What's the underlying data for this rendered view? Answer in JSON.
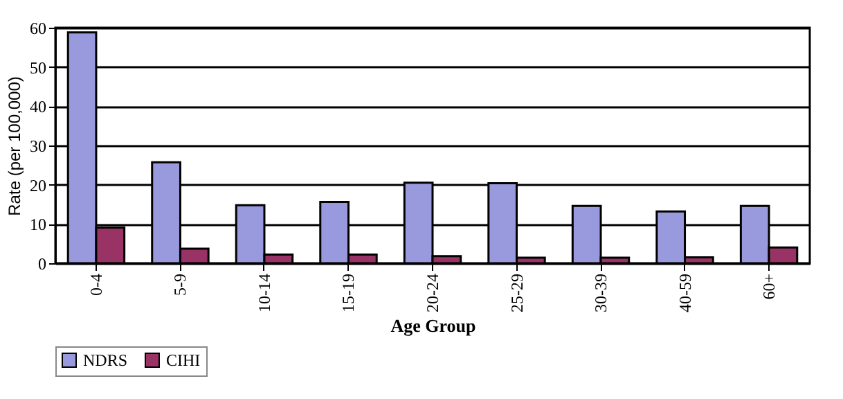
{
  "chart_data": {
    "type": "bar",
    "xlabel": "Age Group",
    "ylabel": "Rate (per 100,000)",
    "categories": [
      "0-4",
      "5-9",
      "10-14",
      "15-19",
      "20-24",
      "25-29",
      "30-39",
      "40-59",
      "60+"
    ],
    "series": [
      {
        "name": "NDRS",
        "color": "#9999dd",
        "values": [
          58.8,
          25.7,
          14.8,
          15.6,
          20.5,
          20.4,
          14.6,
          13.2,
          14.6
        ]
      },
      {
        "name": "CIHI",
        "color": "#993366",
        "values": [
          9.1,
          3.7,
          2.2,
          2.2,
          1.8,
          1.4,
          1.4,
          1.5,
          4.0
        ]
      }
    ],
    "ylim": [
      0,
      60
    ],
    "yticks": [
      0,
      10,
      20,
      30,
      40,
      50,
      60
    ],
    "grid": "y",
    "legend": "bottom"
  }
}
